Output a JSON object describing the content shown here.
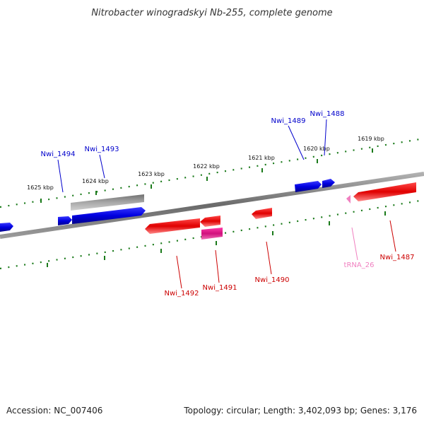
{
  "title": "Nitrobacter winogradskyi Nb-255, complete genome",
  "footer": {
    "accession": "Accession: NC_007406",
    "summary": "Topology: circular; Length: 3,402,093 bp; Genes: 3,176"
  },
  "scale": {
    "labels": [
      "1625 kbp",
      "1624 kbp",
      "1623 kbp",
      "1622 kbp",
      "1621 kbp",
      "1620 kbp",
      "1619 kbp"
    ],
    "color": "#1a7a1a"
  },
  "colors": {
    "backbone": "#808080",
    "forward": "#0000e0",
    "reverse": "#e00000",
    "magenta": "#e0108c",
    "trna": "#f080c0",
    "gray_feature": "#a8a8a8"
  },
  "labels": {
    "nwi_1494": "Nwi_1494",
    "nwi_1493": "Nwi_1493",
    "nwi_1489": "Nwi_1489",
    "nwi_1488": "Nwi_1488",
    "nwi_1492": "Nwi_1492",
    "nwi_1491": "Nwi_1491",
    "nwi_1490": "Nwi_1490",
    "trna_26": "tRNA_26",
    "nwi_1487": "Nwi_1487"
  }
}
